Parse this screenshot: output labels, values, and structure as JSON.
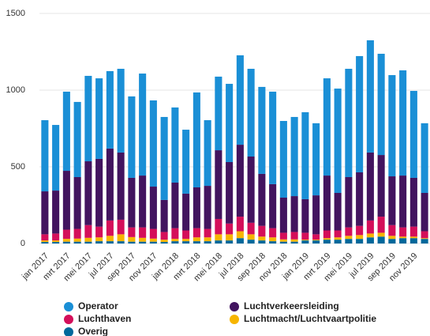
{
  "chart_data": {
    "type": "stacked_bar",
    "categories": [
      "jan 2017",
      null,
      "mrt 2017",
      null,
      "mei 2017",
      null,
      "jul 2017",
      null,
      "sep 2017",
      null,
      "nov 2017",
      null,
      "jan 2018",
      null,
      "mrt 2018",
      null,
      "mei 2018",
      null,
      "jul 2018",
      null,
      "sep 2018",
      null,
      "nov 2018",
      null,
      "jan 2019",
      null,
      "mrt 2019",
      null,
      "mei 2019",
      null,
      "jul 2019",
      null,
      "sep 2019",
      null,
      "nov 2019",
      null
    ],
    "series": [
      {
        "name": "Overig",
        "color": "#01689b",
        "values": [
          10,
          10,
          12,
          12,
          12,
          15,
          15,
          15,
          12,
          12,
          12,
          10,
          15,
          15,
          15,
          15,
          20,
          20,
          35,
          25,
          20,
          15,
          12,
          12,
          20,
          20,
          25,
          25,
          30,
          30,
          40,
          45,
          30,
          35,
          35,
          30
        ]
      },
      {
        "name": "Luchtmacht/Luchtvaartpolitie",
        "color": "#f7b500",
        "values": [
          10,
          10,
          18,
          20,
          25,
          25,
          35,
          45,
          30,
          25,
          20,
          15,
          15,
          15,
          25,
          25,
          40,
          40,
          45,
          35,
          25,
          25,
          15,
          15,
          5,
          5,
          10,
          15,
          20,
          25,
          25,
          25,
          20,
          10,
          10,
          5
        ]
      },
      {
        "name": "Luchthaven",
        "color": "#d40f5a",
        "values": [
          40,
          45,
          60,
          63,
          83,
          70,
          100,
          95,
          63,
          68,
          63,
          50,
          70,
          55,
          60,
          55,
          100,
          70,
          95,
          75,
          70,
          60,
          43,
          48,
          45,
          35,
          50,
          45,
          55,
          60,
          85,
          105,
          70,
          60,
          65,
          45
        ]
      },
      {
        "name": "Luchtverkeersleiding",
        "color": "#42145f",
        "values": [
          280,
          280,
          384,
          338,
          416,
          442,
          469,
          438,
          323,
          338,
          276,
          209,
          297,
          240,
          266,
          281,
          448,
          401,
          469,
          432,
          339,
          287,
          229,
          234,
          219,
          254,
          358,
          245,
          328,
          349,
          443,
          402,
          318,
          338,
          318,
          250
        ]
      },
      {
        "name": "Operator",
        "color": "#1a8fd6",
        "values": [
          464,
          428,
          516,
          490,
          557,
          525,
          505,
          546,
          531,
          665,
          562,
          541,
          490,
          417,
          619,
          428,
          480,
          510,
          583,
          572,
          567,
          603,
          500,
          516,
          567,
          470,
          634,
          680,
          706,
          758,
          732,
          660,
          660,
          686,
          567,
          454
        ]
      }
    ],
    "ylim": [
      0,
      1500
    ],
    "yticks": [
      0,
      500,
      1000,
      1500
    ],
    "grid": true
  }
}
